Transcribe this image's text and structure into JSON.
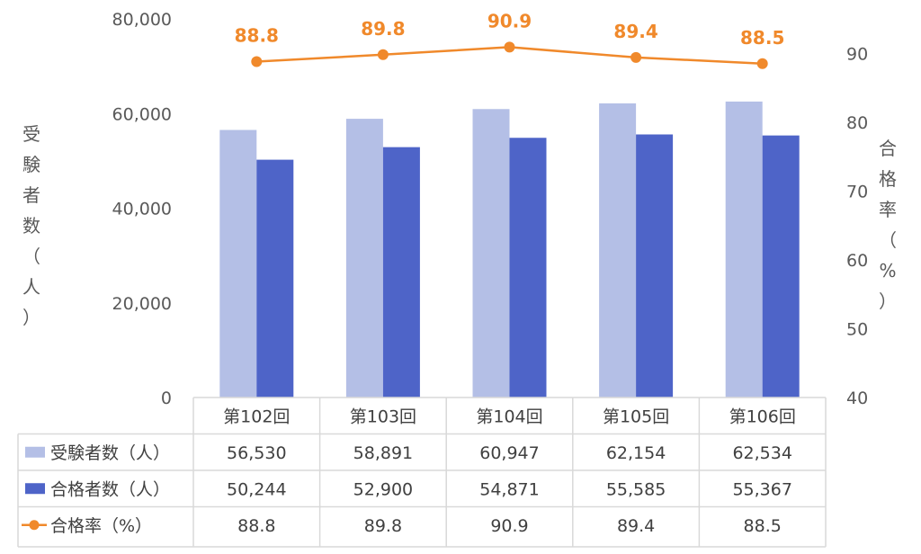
{
  "chart_data": {
    "type": "bar",
    "categories": [
      "第102回",
      "第103回",
      "第104回",
      "第105回",
      "第106回"
    ],
    "series": [
      {
        "name": "受験者数（人）",
        "kind": "bar",
        "axis": "left",
        "color": "#B4BFE6",
        "values": [
          56530,
          58891,
          60947,
          62154,
          62534
        ],
        "display": [
          "56,530",
          "58,891",
          "60,947",
          "62,154",
          "62,534"
        ]
      },
      {
        "name": "合格者数（人）",
        "kind": "bar",
        "axis": "left",
        "color": "#4E64C8",
        "values": [
          50244,
          52900,
          54871,
          55585,
          55367
        ],
        "display": [
          "50,244",
          "52,900",
          "54,871",
          "55,585",
          "55,367"
        ]
      },
      {
        "name": "合格率（%）",
        "kind": "line",
        "axis": "right",
        "color": "#F0892B",
        "values": [
          88.8,
          89.8,
          90.9,
          89.4,
          88.5
        ],
        "display": [
          "88.8",
          "89.8",
          "90.9",
          "89.4",
          "88.5"
        ]
      }
    ],
    "ylabel": "受験者数（人）",
    "ylabel_right": "合格率（%）",
    "ylim": [
      0,
      80000
    ],
    "yticks": [
      "0",
      "20,000",
      "40,000",
      "60,000",
      "80,000"
    ],
    "ylim_right": [
      40,
      95
    ],
    "yticks_right": [
      "40",
      "50",
      "60",
      "70",
      "80",
      "90"
    ],
    "grid": false,
    "data_table": true,
    "data_labels": [
      "88.8",
      "89.8",
      "90.9",
      "89.4",
      "88.5"
    ]
  }
}
